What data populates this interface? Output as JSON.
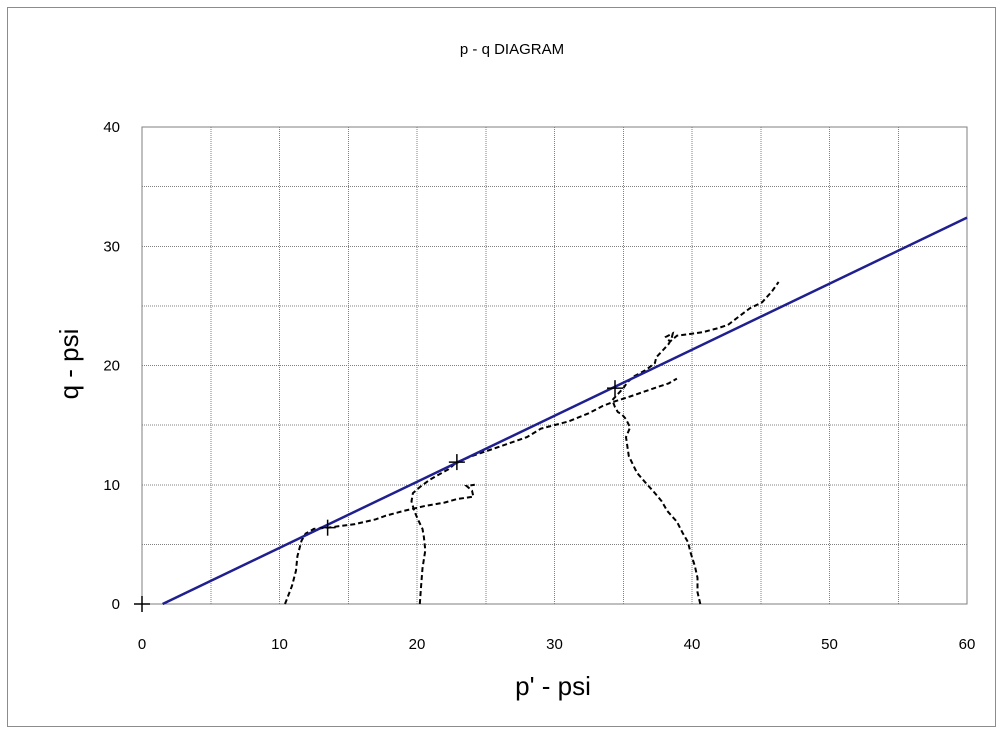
{
  "chart_data": {
    "type": "scatter",
    "title": "p - q  DIAGRAM",
    "xlabel": "p' - psi",
    "ylabel": "q - psi",
    "xlim": [
      0,
      60
    ],
    "ylim": [
      0,
      40
    ],
    "xticks": [
      "0",
      "10",
      "20",
      "30",
      "40",
      "50",
      "60"
    ],
    "yticks": [
      "0",
      "10",
      "20",
      "30",
      "40"
    ],
    "grid_x_step": 5,
    "grid_y_step": 5,
    "grid": true,
    "legend": "none",
    "colors": {
      "failure_line": "#1f1f8f",
      "stress_paths": "#000000",
      "grid": "#808080"
    },
    "failure_line": {
      "x": [
        1.5,
        60
      ],
      "y": [
        0,
        32.4
      ]
    },
    "failure_points": [
      {
        "x": 0,
        "y": 0
      },
      {
        "x": 13.5,
        "y": 6.4
      },
      {
        "x": 22.9,
        "y": 11.9
      },
      {
        "x": 34.4,
        "y": 18.1
      }
    ],
    "series": [
      {
        "x": [
          10.4,
          10.9,
          11.2,
          11.3,
          11.6,
          11.9,
          12.5,
          13.5,
          15.5,
          17.0,
          17.7,
          19.0,
          20.5,
          22.0,
          22.9,
          23.5,
          24.1,
          24.0,
          23.6,
          24.2
        ],
        "y": [
          0,
          1.5,
          2.8,
          4.0,
          5.3,
          5.9,
          6.3,
          6.4,
          6.7,
          7.1,
          7.4,
          7.8,
          8.2,
          8.5,
          8.8,
          8.9,
          9.0,
          9.5,
          9.9,
          10.0
        ]
      },
      {
        "x": [
          20.2,
          20.3,
          20.4,
          20.6,
          20.5,
          20.4,
          20.1,
          19.8,
          19.6,
          19.7,
          20.2,
          20.9,
          21.5,
          22.3,
          22.9,
          24.0,
          26.0,
          28.0,
          29.0,
          31.0,
          32.5,
          33.5,
          34.4,
          35.5,
          36.5,
          37.5,
          38.3,
          38.9
        ],
        "y": [
          0,
          1.5,
          3.0,
          4.5,
          5.6,
          6.3,
          7.0,
          7.8,
          8.6,
          9.3,
          9.8,
          10.4,
          10.8,
          11.3,
          11.9,
          12.4,
          13.2,
          14.0,
          14.7,
          15.3,
          16.0,
          16.6,
          17.0,
          17.4,
          17.8,
          18.2,
          18.5,
          18.9
        ]
      },
      {
        "x": [
          40.6,
          40.4,
          40.4,
          40.2,
          39.9,
          39.7,
          39.3,
          38.9,
          38.2,
          37.8,
          37.3,
          36.6,
          36.0,
          35.7,
          35.4,
          35.3,
          35.2,
          35.5,
          35.2,
          34.9,
          34.6,
          34.4,
          34.2,
          34.6,
          35.0,
          35.3,
          35.8,
          36.6,
          37.3,
          37.4,
          37.9,
          38.3,
          38.5,
          38.6,
          38.1,
          38.4,
          38.9,
          39.6,
          40.8,
          41.8,
          42.6,
          43.4,
          44.2,
          45.1,
          45.8,
          46.3
        ],
        "y": [
          0,
          1.0,
          2.2,
          3.2,
          4.3,
          5.2,
          6.0,
          6.9,
          7.8,
          8.6,
          9.3,
          10.2,
          11.0,
          11.7,
          12.4,
          13.2,
          14.0,
          14.8,
          15.5,
          15.9,
          16.1,
          16.5,
          17.1,
          17.6,
          18.1,
          18.6,
          19.1,
          19.6,
          20.2,
          20.7,
          21.3,
          21.8,
          22.2,
          22.7,
          22.4,
          22.0,
          22.5,
          22.6,
          22.8,
          23.1,
          23.4,
          24.1,
          24.8,
          25.3,
          26.2,
          27.0
        ]
      }
    ]
  }
}
